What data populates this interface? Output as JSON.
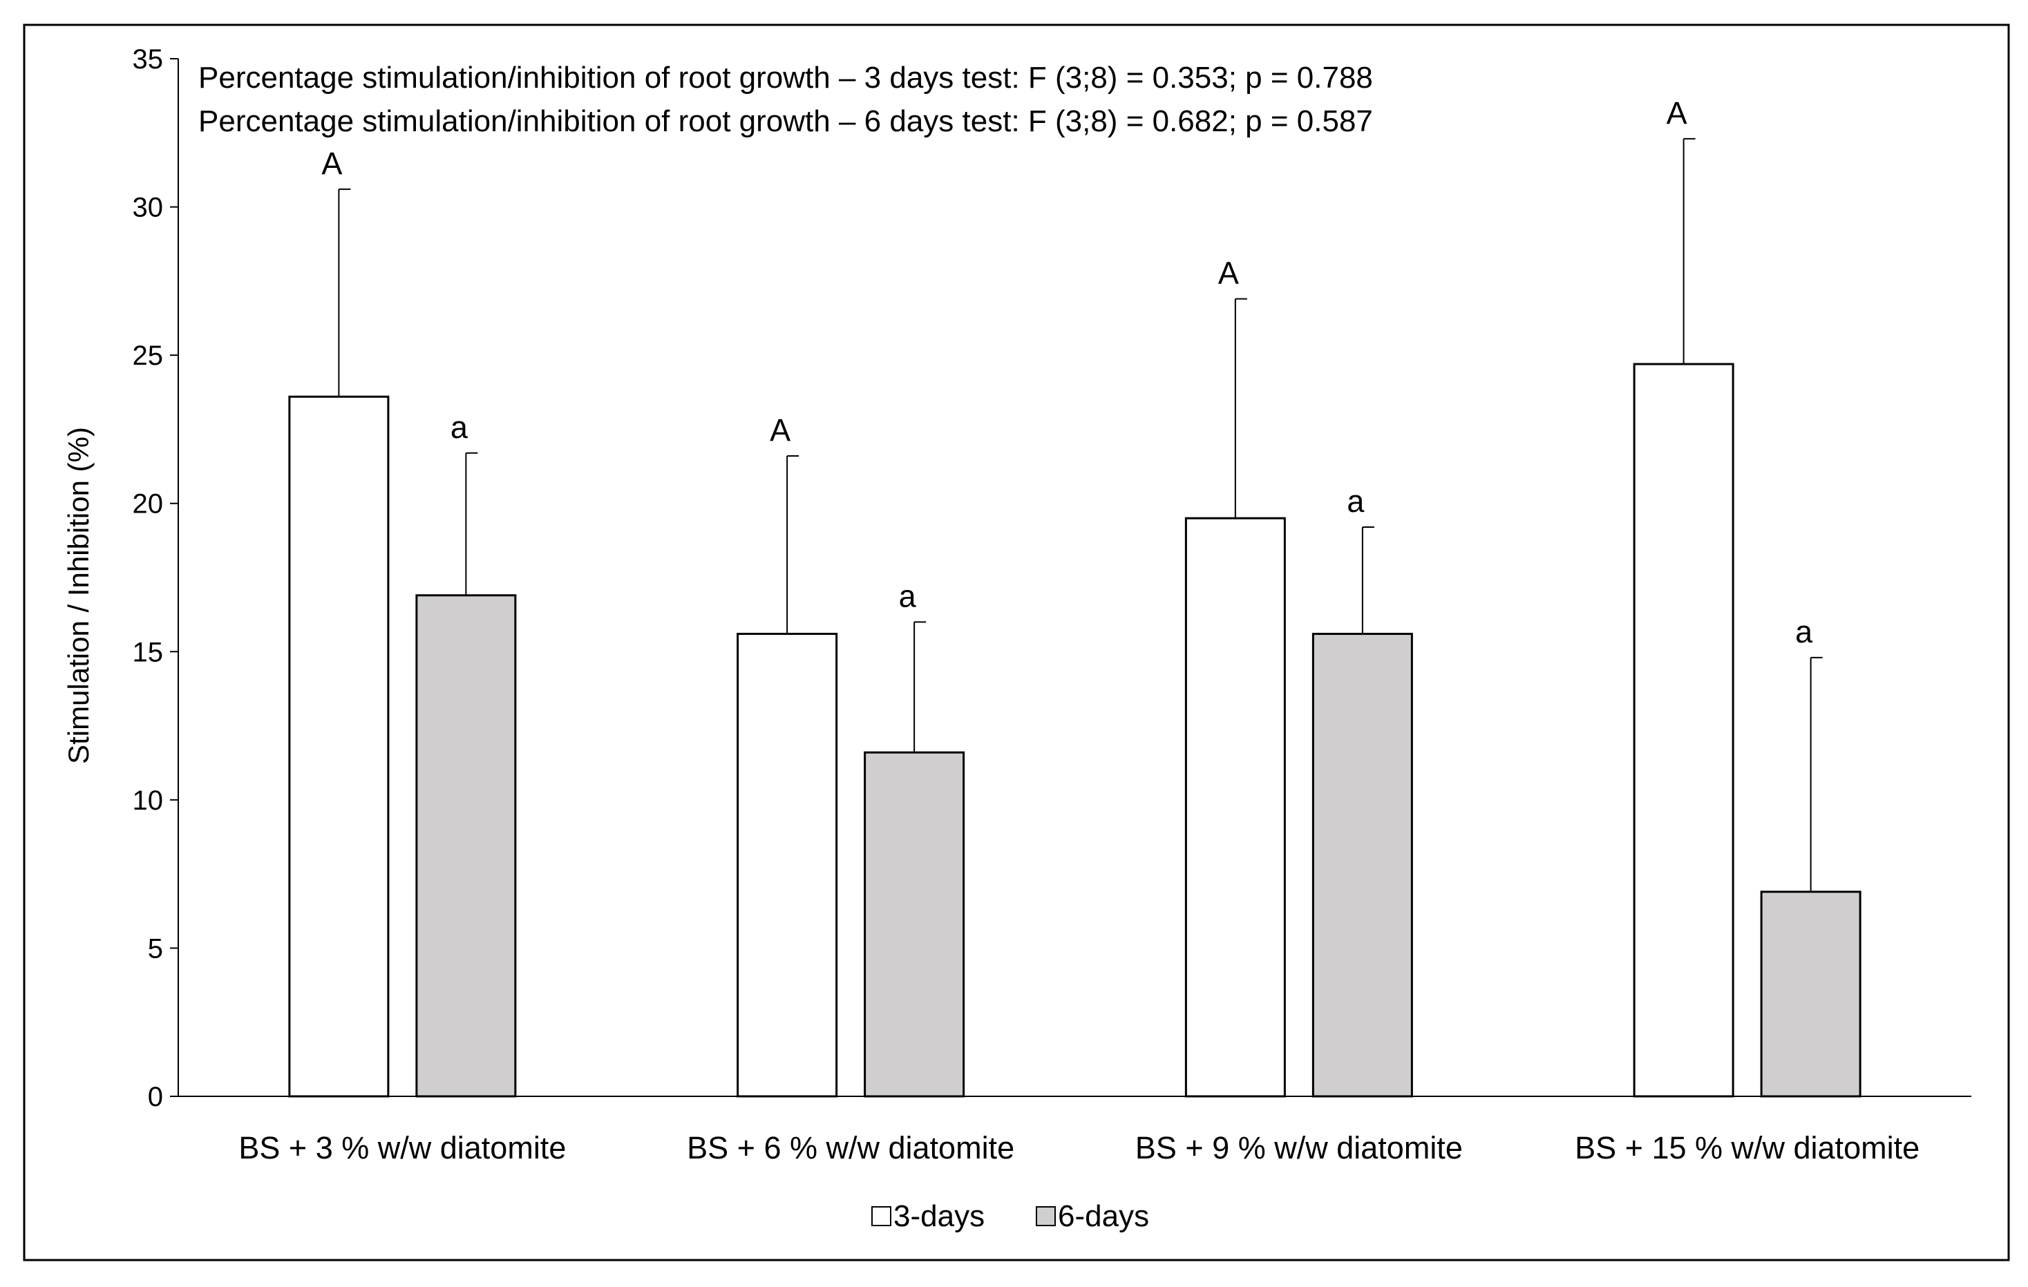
{
  "chart_data": {
    "type": "bar",
    "categories": [
      "BS + 3 % w/w diatomite",
      "BS + 6 % w/w diatomite",
      "BS + 9 % w/w diatomite",
      "BS + 15 % w/w diatomite"
    ],
    "series": [
      {
        "name": "3-days",
        "values": [
          23.6,
          15.6,
          19.5,
          24.7
        ],
        "errors": [
          7.0,
          6.0,
          7.4,
          7.6
        ],
        "letters": [
          "A",
          "A",
          "A",
          "A"
        ],
        "color": "#ffffff"
      },
      {
        "name": "6-days",
        "values": [
          16.9,
          11.6,
          15.6,
          6.9
        ],
        "errors": [
          4.8,
          4.4,
          3.6,
          7.9
        ],
        "letters": [
          "a",
          "a",
          "a",
          "a"
        ],
        "color": "#d0cece"
      }
    ],
    "ylabel": "Stimulation / Inhibition  (%)",
    "xlabel": "",
    "ylim": [
      0,
      35
    ],
    "yticks": [
      "0",
      "5",
      "10",
      "15",
      "20",
      "25",
      "30",
      "35"
    ],
    "annotations": [
      "Percentage stimulation/inhibition of root growth – 3 days test: F (3;8) = 0.353; p = 0.788",
      "Percentage stimulation/inhibition of root growth – 6 days test: F (3;8) = 0.682; p = 0.587"
    ],
    "legend_position": "bottom-center",
    "grid": false
  }
}
